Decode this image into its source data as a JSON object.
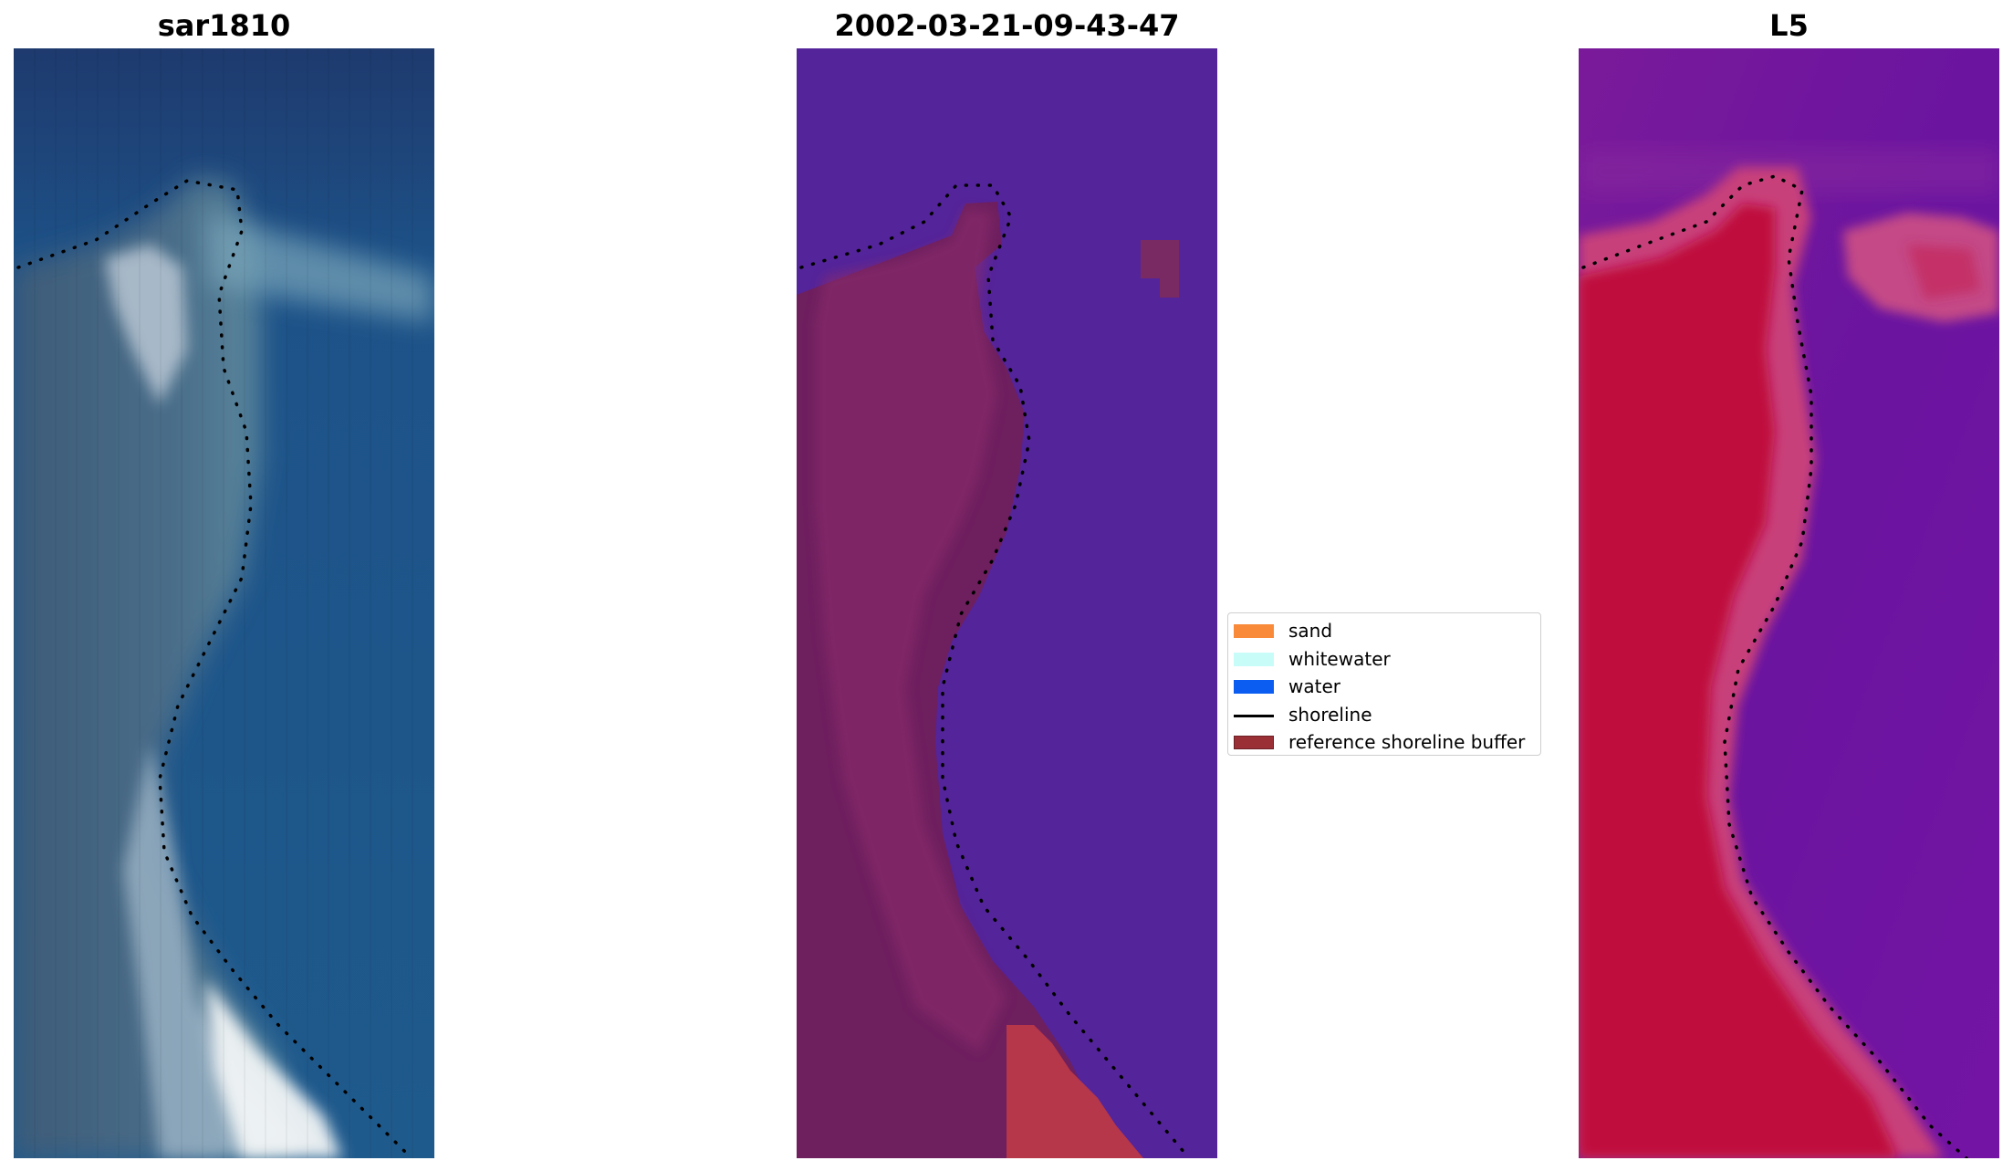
{
  "panels": {
    "left": {
      "title": "sar1810"
    },
    "middle": {
      "title": "2002-03-21-09-43-47"
    },
    "right": {
      "title": "L5"
    }
  },
  "legend": {
    "items": [
      {
        "label": "sand",
        "color": "#f98a3a",
        "kind": "patch"
      },
      {
        "label": "whitewater",
        "color": "#c8fcf9",
        "kind": "patch"
      },
      {
        "label": "water",
        "color": "#0b5df1",
        "kind": "patch"
      },
      {
        "label": "shoreline",
        "color": "#000000",
        "kind": "line"
      },
      {
        "label": "reference shoreline buffer",
        "color": "#9a2f35",
        "kind": "patch"
      }
    ]
  }
}
